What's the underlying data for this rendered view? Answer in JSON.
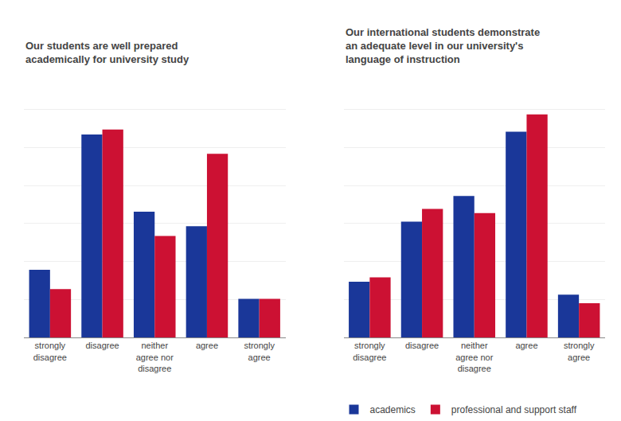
{
  "chart_data": [
    {
      "type": "bar",
      "title": "Our students are well prepared\nacademically for university study",
      "categories": [
        "strongly\ndisagree",
        "disagree",
        "neither\nagree nor\ndisagree",
        "agree",
        "strongly\nagree"
      ],
      "series": [
        {
          "name": "academics",
          "color": "#1a3799",
          "values": [
            14,
            42,
            26,
            23,
            8
          ]
        },
        {
          "name": "professional and support staff",
          "color": "#cc1133",
          "values": [
            10,
            43,
            21,
            38,
            8
          ]
        }
      ],
      "ylim": [
        0,
        55
      ],
      "yticks": [
        0,
        7.857142857142857,
        15.714285714285714,
        23.571428571428573,
        31.428571428571427,
        39.285714285714285,
        47.142857142857146,
        55
      ],
      "grid": true,
      "tick_labels": "x"
    },
    {
      "type": "bar",
      "title": "Our international students demonstrate\nan adequate level in our university's\nlanguage of instruction",
      "categories": [
        "strongly\ndisagree",
        "disagree",
        "neither\nagree nor\ndisagree",
        "agree",
        "strongly\nagree"
      ],
      "series": [
        {
          "name": "academics",
          "color": "#1a3799",
          "values": [
            13,
            27,
            33,
            48,
            10
          ]
        },
        {
          "name": "professional and support staff",
          "color": "#cc1133",
          "values": [
            14,
            30,
            29,
            52,
            8
          ]
        }
      ],
      "ylim": [
        0,
        62
      ],
      "yticks": [
        0,
        8.857142857142858,
        17.714285714285715,
        26.571428571428573,
        35.42857142857143,
        44.285714285714285,
        53.142857142857146,
        62
      ],
      "grid": true,
      "tick_labels": "x",
      "legend": "bottom"
    }
  ]
}
